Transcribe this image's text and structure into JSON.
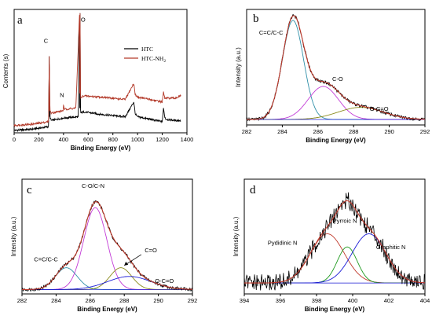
{
  "colors": {
    "black": "#000000",
    "red": "#b33a2a",
    "cyan": "#2f8fa8",
    "magenta": "#c23ad6",
    "olive": "#8a8a1a",
    "blue": "#1a1ad6",
    "green": "#1f9a1f",
    "red_fit": "#c0392b"
  },
  "chart_data": [
    {
      "id": "a",
      "type": "line",
      "panel_letter": "a",
      "xlabel": "Binding Energy (eV)",
      "ylabel": "Contents (s)",
      "xlim": [
        0,
        1400
      ],
      "ylim": [
        0,
        100
      ],
      "xticks": [
        0,
        200,
        400,
        600,
        800,
        1000,
        1200,
        1400
      ],
      "annotations": [
        {
          "text": "C",
          "x": 240,
          "y": 73
        },
        {
          "text": "N",
          "x": 370,
          "y": 29
        },
        {
          "text": "O",
          "x": 540,
          "y": 90
        }
      ],
      "series": [
        {
          "name": "HTC",
          "color": "#000000",
          "x": [
            0,
            150,
            280,
            284,
            290,
            300,
            400,
            520,
            530,
            534,
            540,
            560,
            700,
            900,
            970,
            980,
            990,
            1000,
            1100,
            1200,
            1210,
            1220,
            1230,
            1300,
            1350
          ],
          "y": [
            2,
            3,
            5,
            62,
            13,
            10,
            12,
            13,
            97,
            25,
            16,
            17,
            15,
            13,
            25,
            16,
            14,
            13,
            11,
            9,
            20,
            13,
            11,
            10,
            10
          ]
        },
        {
          "name": "HTC-NH2",
          "color": "#b33a2a",
          "x": [
            0,
            150,
            280,
            284,
            290,
            300,
            398,
            400,
            404,
            500,
            530,
            534,
            540,
            560,
            700,
            900,
            970,
            980,
            990,
            1000,
            1100,
            1200,
            1210,
            1220,
            1230,
            1300,
            1350
          ],
          "y": [
            6,
            7,
            9,
            62,
            18,
            16,
            18,
            24,
            19,
            20,
            97,
            35,
            28,
            30,
            29,
            27,
            40,
            31,
            30,
            29,
            27,
            25,
            33,
            28,
            28,
            28,
            30
          ]
        }
      ],
      "legend": [
        "HTC",
        "HTC-NH2"
      ],
      "legend_display": {
        "base": "HTC-NH",
        "sub": "2"
      }
    },
    {
      "id": "b",
      "type": "line",
      "panel_letter": "b",
      "xlabel": "Binding Energy (eV)",
      "ylabel": "Intensity (a.u.)",
      "xlim": [
        282,
        292
      ],
      "xticks": [
        282,
        284,
        286,
        288,
        290,
        292
      ],
      "annotations": [
        {
          "text": "C=C/C-C",
          "x": 282.7,
          "y": 0.82
        },
        {
          "text": "C-O",
          "x": 286.8,
          "y": 0.4
        },
        {
          "text": "O-C=O",
          "x": 288.9,
          "y": 0.13
        }
      ],
      "peaks": [
        {
          "name": "C=C/C-C",
          "center": 284.6,
          "height": 0.9,
          "fwhm": 1.4,
          "color": "#2f8fa8"
        },
        {
          "name": "C-O",
          "center": 286.3,
          "height": 0.3,
          "fwhm": 2.0,
          "color": "#c23ad6"
        },
        {
          "name": "O-C=O",
          "center": 288.4,
          "height": 0.11,
          "fwhm": 3.0,
          "color": "#8a8a1a"
        }
      ],
      "baseline": 0.05,
      "ylim": [
        0,
        1.05
      ]
    },
    {
      "id": "c",
      "type": "line",
      "panel_letter": "c",
      "xlabel": "Binding Energy (eV)",
      "ylabel": "Intensity (a.u.)",
      "xlim": [
        282,
        292
      ],
      "xticks": [
        282,
        284,
        286,
        288,
        290,
        292
      ],
      "annotations": [
        {
          "text": "C=C/C-C",
          "x": 282.7,
          "y": 0.3
        },
        {
          "text": "C-O/C-N",
          "x": 285.5,
          "y": 0.97
        },
        {
          "text": "C=O",
          "x": 289.2,
          "y": 0.38
        },
        {
          "text": "O-C=O",
          "x": 289.8,
          "y": 0.1
        }
      ],
      "peaks": [
        {
          "name": "C=C/C-C",
          "center": 284.6,
          "height": 0.2,
          "fwhm": 1.5,
          "color": "#2f8fa8"
        },
        {
          "name": "C-O/C-N",
          "center": 286.3,
          "height": 0.75,
          "fwhm": 1.6,
          "color": "#c23ad6"
        },
        {
          "name": "C=O",
          "center": 287.8,
          "height": 0.2,
          "fwhm": 1.5,
          "color": "#8a8a1a"
        },
        {
          "name": "O-C=O",
          "center": 288.3,
          "height": 0.12,
          "fwhm": 3.0,
          "color": "#1a1ad6"
        }
      ],
      "baseline": 0.04,
      "ylim": [
        0,
        1.05
      ]
    },
    {
      "id": "d",
      "type": "line",
      "panel_letter": "d",
      "xlabel": "Binding Energy (eV)",
      "ylabel": "Intensity (a.u.)",
      "xlim": [
        394,
        404
      ],
      "xticks": [
        394,
        396,
        398,
        400,
        402,
        404
      ],
      "annotations": [
        {
          "text": "Pydidinic N",
          "x": 395.3,
          "y": 0.45
        },
        {
          "text": "Pyrroic N",
          "x": 398.9,
          "y": 0.65
        },
        {
          "text": "Graphitic N",
          "x": 401.3,
          "y": 0.41
        }
      ],
      "peaks": [
        {
          "name": "Pydidinic N",
          "center": 398.6,
          "height": 0.45,
          "fwhm": 2.2,
          "color": "#c0392b"
        },
        {
          "name": "Pyrroic N",
          "center": 399.7,
          "height": 0.33,
          "fwhm": 1.3,
          "color": "#1f9a1f"
        },
        {
          "name": "Graphitic N",
          "center": 400.9,
          "height": 0.45,
          "fwhm": 2.2,
          "color": "#1a1ad6"
        }
      ],
      "baseline": 0.1,
      "ylim": [
        0,
        1.05
      ]
    }
  ]
}
